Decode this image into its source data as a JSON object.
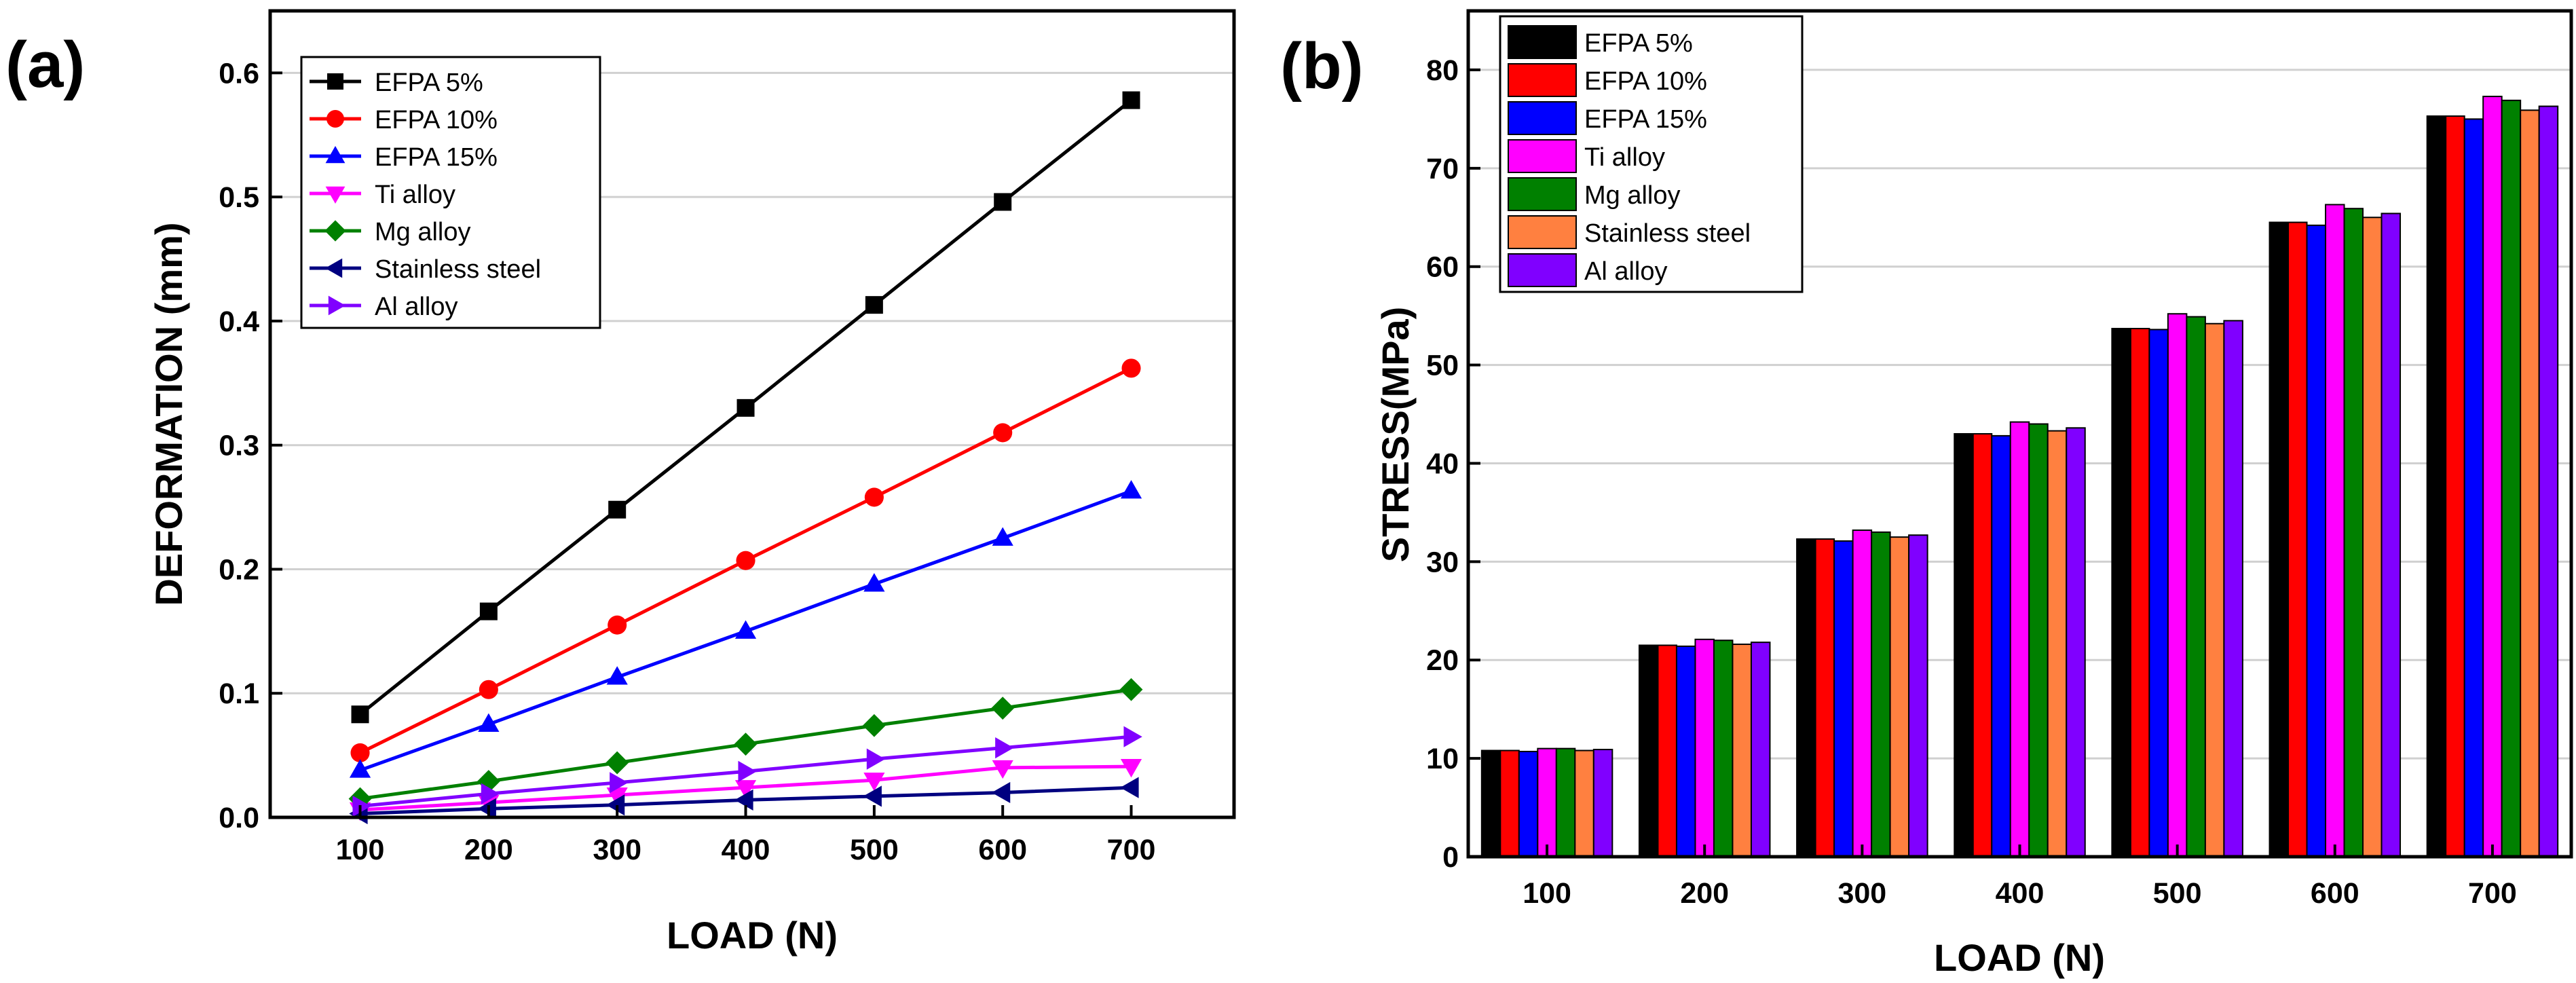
{
  "chart_data": [
    {
      "panel_label": "(a)",
      "type": "line",
      "xlabel": "LOAD (N)",
      "ylabel": "DEFORMATION (mm)",
      "x": [
        100,
        200,
        300,
        400,
        500,
        600,
        700
      ],
      "x_tick_labels": [
        "100",
        "200",
        "300",
        "400",
        "500",
        "600",
        "700"
      ],
      "y_tick_labels": [
        "0.0",
        "0.1",
        "0.2",
        "0.3",
        "0.4",
        "0.5",
        "0.6"
      ],
      "xlim": [
        30,
        780
      ],
      "ylim": [
        0,
        0.65
      ],
      "grid": true,
      "legend_position": "top-left",
      "series": [
        {
          "name": "EFPA 5%",
          "color": "#000000",
          "marker": "square",
          "values": [
            0.083,
            0.166,
            0.248,
            0.33,
            0.413,
            0.496,
            0.578
          ]
        },
        {
          "name": "EFPA 10%",
          "color": "#ff0000",
          "marker": "circle",
          "values": [
            0.052,
            0.103,
            0.155,
            0.207,
            0.258,
            0.31,
            0.362
          ]
        },
        {
          "name": "EFPA 15%",
          "color": "#0000ff",
          "marker": "triangle-up",
          "values": [
            0.038,
            0.075,
            0.113,
            0.15,
            0.188,
            0.225,
            0.263
          ]
        },
        {
          "name": "Ti alloy",
          "color": "#ff00ff",
          "marker": "triangle-down",
          "values": [
            0.006,
            0.012,
            0.018,
            0.024,
            0.03,
            0.04,
            0.041
          ]
        },
        {
          "name": "Mg alloy",
          "color": "#008000",
          "marker": "diamond",
          "values": [
            0.015,
            0.029,
            0.044,
            0.059,
            0.074,
            0.088,
            0.103
          ]
        },
        {
          "name": "Stainless steel",
          "color": "#000080",
          "marker": "triangle-left",
          "values": [
            0.003,
            0.007,
            0.01,
            0.014,
            0.017,
            0.02,
            0.024
          ]
        },
        {
          "name": "Al alloy",
          "color": "#8000ff",
          "marker": "triangle-right",
          "values": [
            0.009,
            0.019,
            0.028,
            0.037,
            0.047,
            0.056,
            0.065
          ]
        }
      ]
    },
    {
      "panel_label": "(b)",
      "type": "bar",
      "xlabel": "LOAD (N)",
      "ylabel": "STRESS(MPa)",
      "categories": [
        "100",
        "200",
        "300",
        "400",
        "500",
        "600",
        "700"
      ],
      "y_tick_labels": [
        "0",
        "10",
        "20",
        "30",
        "40",
        "50",
        "60",
        "70",
        "80"
      ],
      "ylim": [
        0,
        86
      ],
      "grid": true,
      "legend_position": "top-left",
      "series": [
        {
          "name": "EFPA 5%",
          "color": "#000000",
          "values": [
            10.8,
            21.5,
            32.3,
            43.0,
            53.7,
            64.5,
            75.3
          ]
        },
        {
          "name": "EFPA 10%",
          "color": "#ff0000",
          "values": [
            10.8,
            21.5,
            32.3,
            43.0,
            53.7,
            64.5,
            75.3
          ]
        },
        {
          "name": "EFPA 15%",
          "color": "#0000ff",
          "values": [
            10.7,
            21.4,
            32.1,
            42.8,
            53.6,
            64.2,
            75.0
          ]
        },
        {
          "name": "Ti alloy",
          "color": "#ff00ff",
          "values": [
            11.0,
            22.1,
            33.2,
            44.2,
            55.2,
            66.3,
            77.3
          ]
        },
        {
          "name": "Mg alloy",
          "color": "#008000",
          "values": [
            11.0,
            22.0,
            33.0,
            44.0,
            54.9,
            65.9,
            76.9
          ]
        },
        {
          "name": "Stainless steel",
          "color": "#ff8040",
          "values": [
            10.8,
            21.6,
            32.5,
            43.3,
            54.2,
            65.0,
            75.9
          ]
        },
        {
          "name": "Al alloy",
          "color": "#8000ff",
          "values": [
            10.9,
            21.8,
            32.7,
            43.6,
            54.5,
            65.4,
            76.3
          ]
        }
      ]
    }
  ]
}
